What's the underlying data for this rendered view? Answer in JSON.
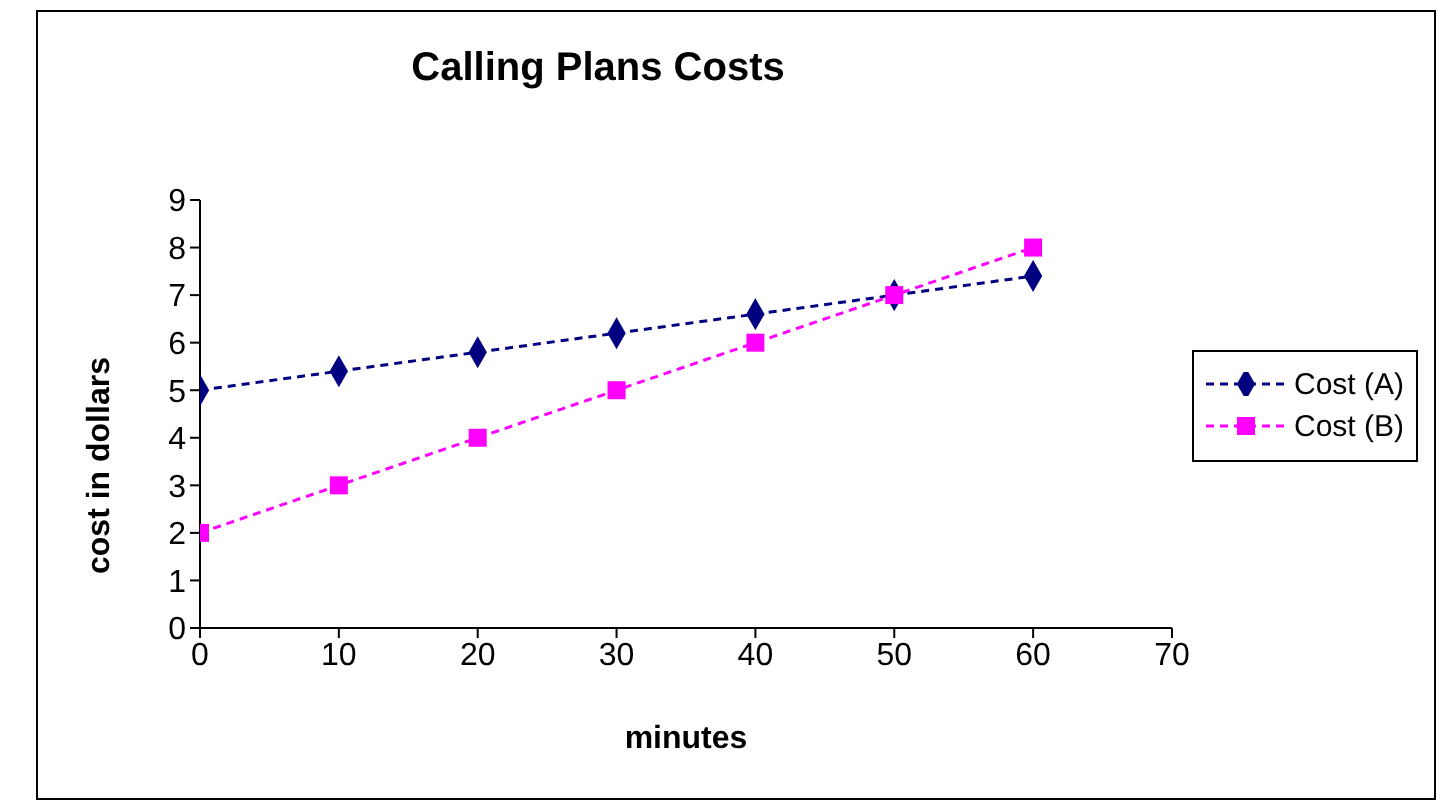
{
  "chart_data": {
    "type": "line",
    "title": "Calling Plans Costs",
    "xlabel": "minutes",
    "ylabel": "cost in dollars",
    "x": [
      0,
      10,
      20,
      30,
      40,
      50,
      60
    ],
    "series": [
      {
        "name": "Cost (A)",
        "color": "#000080",
        "values": [
          5,
          5.4,
          5.8,
          6.2,
          6.6,
          7,
          7.4
        ],
        "marker": "diamond"
      },
      {
        "name": "Cost (B)",
        "color": "#ff00ff",
        "values": [
          2,
          3,
          4,
          5,
          6,
          7,
          8
        ],
        "marker": "square"
      }
    ],
    "xlim": [
      0,
      70
    ],
    "xticks": [
      0,
      10,
      20,
      30,
      40,
      50,
      60,
      70
    ],
    "ylim": [
      0,
      9
    ],
    "yticks": [
      0,
      1,
      2,
      3,
      4,
      5,
      6,
      7,
      8,
      9
    ],
    "grid": false,
    "legend": "right",
    "line_style": "dashed"
  }
}
